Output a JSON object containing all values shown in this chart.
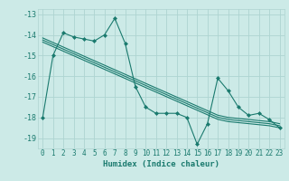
{
  "xlabel": "Humidex (Indice chaleur)",
  "bg_color": "#cceae7",
  "grid_color": "#aed4d1",
  "line_color": "#1a7a6e",
  "x_data": [
    0,
    1,
    2,
    3,
    4,
    5,
    6,
    7,
    8,
    9,
    10,
    11,
    12,
    13,
    14,
    15,
    16,
    17,
    18,
    19,
    20,
    21,
    22,
    23
  ],
  "y_main": [
    -18.0,
    -15.0,
    -13.9,
    -14.1,
    -14.2,
    -14.3,
    -14.0,
    -13.2,
    -14.4,
    -16.5,
    -17.5,
    -17.8,
    -17.8,
    -17.8,
    -18.0,
    -19.3,
    -18.3,
    -16.1,
    -16.7,
    -17.5,
    -17.9,
    -17.8,
    -18.1,
    -18.5
  ],
  "y_line1": [
    -14.15,
    -14.37,
    -14.59,
    -14.81,
    -15.03,
    -15.25,
    -15.47,
    -15.69,
    -15.91,
    -16.13,
    -16.35,
    -16.57,
    -16.79,
    -17.01,
    -17.23,
    -17.45,
    -17.67,
    -17.89,
    -18.0,
    -18.05,
    -18.1,
    -18.15,
    -18.2,
    -18.3
  ],
  "y_line2": [
    -14.25,
    -14.47,
    -14.69,
    -14.91,
    -15.13,
    -15.35,
    -15.57,
    -15.79,
    -16.01,
    -16.23,
    -16.45,
    -16.67,
    -16.89,
    -17.11,
    -17.33,
    -17.55,
    -17.77,
    -17.99,
    -18.1,
    -18.15,
    -18.2,
    -18.25,
    -18.3,
    -18.4
  ],
  "y_line3": [
    -14.35,
    -14.57,
    -14.79,
    -15.01,
    -15.23,
    -15.45,
    -15.67,
    -15.89,
    -16.11,
    -16.33,
    -16.55,
    -16.77,
    -16.99,
    -17.21,
    -17.43,
    -17.65,
    -17.87,
    -18.09,
    -18.2,
    -18.25,
    -18.3,
    -18.35,
    -18.4,
    -18.5
  ],
  "ylim": [
    -19.5,
    -12.75
  ],
  "xlim": [
    -0.5,
    23.5
  ],
  "yticks": [
    -13,
    -14,
    -15,
    -16,
    -17,
    -18,
    -19
  ],
  "xticks": [
    0,
    1,
    2,
    3,
    4,
    5,
    6,
    7,
    8,
    9,
    10,
    11,
    12,
    13,
    14,
    15,
    16,
    17,
    18,
    19,
    20,
    21,
    22,
    23
  ],
  "tick_fontsize": 5.5,
  "xlabel_fontsize": 6.5
}
